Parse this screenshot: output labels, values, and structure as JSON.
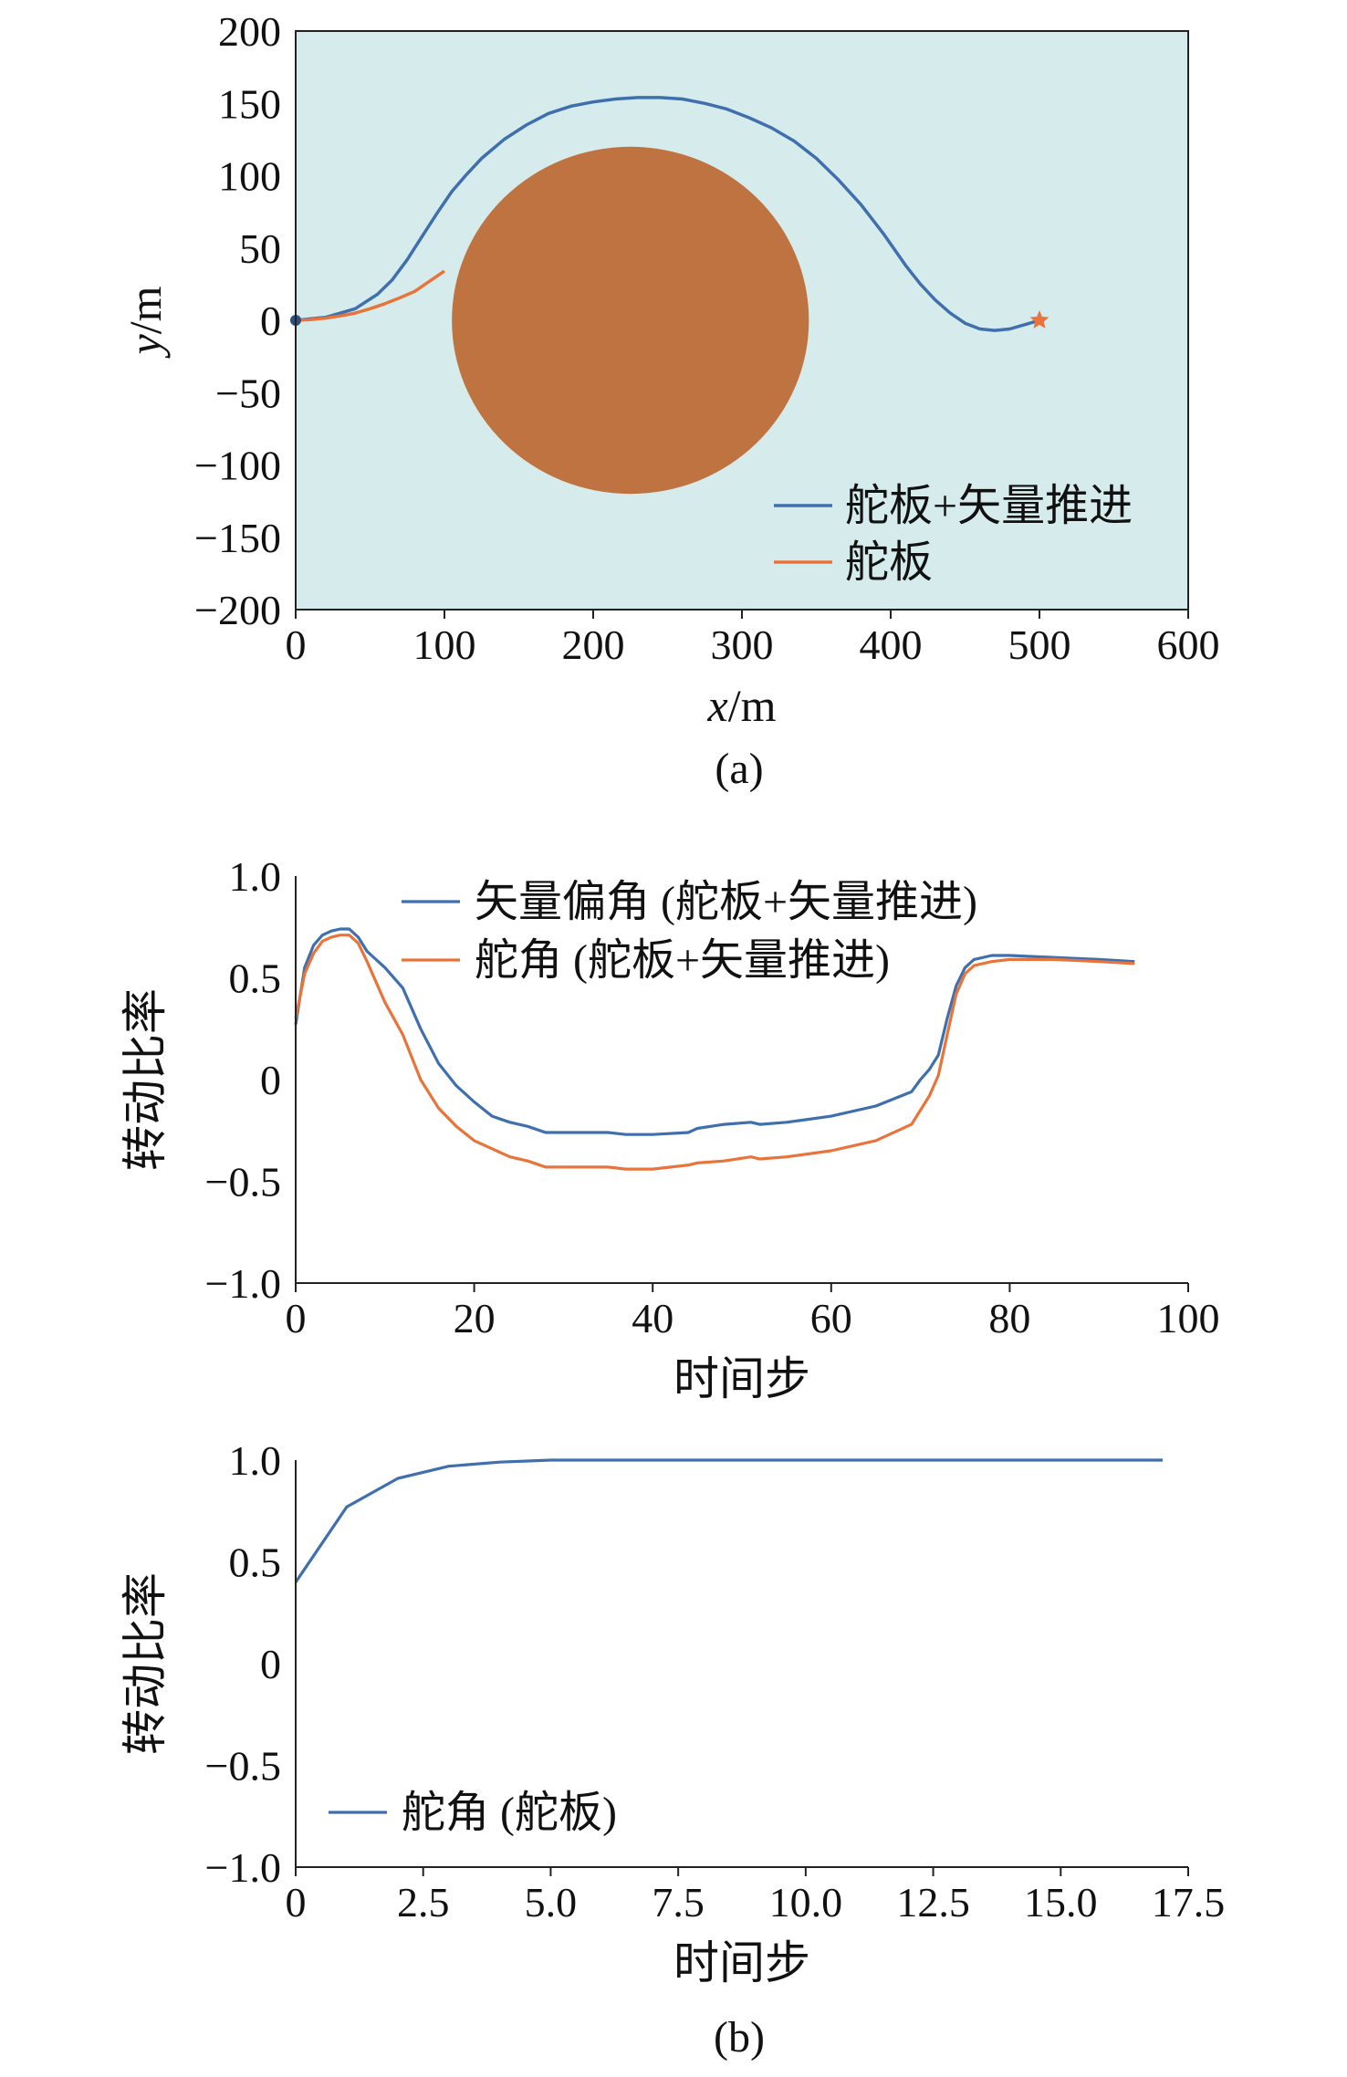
{
  "colors": {
    "blue": "#3f6fad",
    "orange": "#e8743b",
    "bg": "#d6ecec",
    "obstacle": "#bf7340"
  },
  "captions": {
    "a": "(a)",
    "b": "(b)"
  },
  "chart_data": [
    {
      "type": "line",
      "id": "trajectory",
      "xlabel": "x/m",
      "ylabel": "y/m",
      "xlim": [
        0,
        600
      ],
      "ylim": [
        -200,
        200
      ],
      "xticks": [
        0,
        100,
        200,
        300,
        400,
        500,
        600
      ],
      "yticks": [
        200,
        150,
        100,
        50,
        0,
        -50,
        -100,
        -150,
        -200
      ],
      "obstacle": {
        "type": "circle",
        "cx": 225,
        "cy": 0,
        "rx": 120,
        "ry": 120
      },
      "start": [
        0,
        0
      ],
      "goal": [
        500,
        0
      ],
      "series": [
        {
          "name": "舵板+矢量推进",
          "color": "#3f6fad",
          "x": [
            0,
            20,
            40,
            55,
            65,
            75,
            85,
            95,
            105,
            115,
            125,
            140,
            155,
            170,
            185,
            200,
            215,
            230,
            245,
            260,
            275,
            290,
            305,
            320,
            335,
            350,
            365,
            380,
            395,
            410,
            420,
            430,
            440,
            450,
            460,
            470,
            480,
            490,
            500
          ],
          "y": [
            0,
            2,
            8,
            18,
            28,
            42,
            58,
            74,
            89,
            101,
            112,
            125,
            135,
            143,
            148,
            151,
            153,
            154,
            154,
            153,
            150,
            146,
            140,
            133,
            124,
            112,
            97,
            80,
            60,
            38,
            25,
            14,
            5,
            -2,
            -6,
            -7,
            -6,
            -3,
            0
          ]
        },
        {
          "name": "舵板",
          "color": "#e8743b",
          "x": [
            0,
            10,
            20,
            30,
            40,
            50,
            60,
            70,
            80,
            90,
            100
          ],
          "y": [
            0,
            0.5,
            1.5,
            3,
            5,
            8,
            11.5,
            15.5,
            20,
            27,
            34
          ]
        }
      ]
    },
    {
      "type": "line",
      "id": "ratio-100",
      "xlabel": "时间步",
      "ylabel": "转动比率",
      "xlim": [
        0,
        100
      ],
      "ylim": [
        -1.0,
        1.0
      ],
      "xticks": [
        0,
        20,
        40,
        60,
        80,
        100
      ],
      "yticks": [
        "1.0",
        "0.5",
        "0",
        "-0.5",
        "-1.0"
      ],
      "series": [
        {
          "name": "矢量偏角 (舵板+矢量推进)",
          "color": "#3f6fad",
          "x": [
            0,
            1,
            2,
            3,
            4,
            5,
            6,
            7,
            8,
            10,
            12,
            14,
            16,
            18,
            20,
            22,
            24,
            26,
            28,
            30,
            35,
            37,
            40,
            44,
            45,
            48,
            51,
            52,
            55,
            60,
            65,
            69,
            70,
            71,
            72,
            73,
            74,
            75,
            76,
            78,
            80,
            85,
            90,
            94
          ],
          "y": [
            0.27,
            0.55,
            0.66,
            0.71,
            0.73,
            0.74,
            0.74,
            0.7,
            0.63,
            0.55,
            0.45,
            0.25,
            0.08,
            -0.03,
            -0.11,
            -0.18,
            -0.21,
            -0.23,
            -0.26,
            -0.26,
            -0.26,
            -0.27,
            -0.27,
            -0.26,
            -0.24,
            -0.22,
            -0.21,
            -0.22,
            -0.21,
            -0.18,
            -0.13,
            -0.06,
            0.0,
            0.05,
            0.12,
            0.3,
            0.46,
            0.55,
            0.59,
            0.61,
            0.61,
            0.6,
            0.59,
            0.58
          ]
        },
        {
          "name": "舵角 (舵板+矢量推进)",
          "color": "#e8743b",
          "x": [
            0,
            1,
            2,
            3,
            4,
            5,
            6,
            7,
            8,
            10,
            12,
            14,
            16,
            18,
            20,
            22,
            24,
            26,
            28,
            30,
            35,
            37,
            40,
            44,
            45,
            48,
            51,
            52,
            55,
            60,
            65,
            69,
            70,
            71,
            72,
            73,
            74,
            75,
            76,
            78,
            80,
            85,
            90,
            94
          ],
          "y": [
            0.3,
            0.52,
            0.62,
            0.68,
            0.7,
            0.71,
            0.71,
            0.67,
            0.58,
            0.38,
            0.22,
            0.0,
            -0.14,
            -0.23,
            -0.3,
            -0.34,
            -0.38,
            -0.4,
            -0.43,
            -0.43,
            -0.43,
            -0.44,
            -0.44,
            -0.42,
            -0.41,
            -0.4,
            -0.38,
            -0.39,
            -0.38,
            -0.35,
            -0.3,
            -0.22,
            -0.15,
            -0.08,
            0.02,
            0.22,
            0.42,
            0.52,
            0.56,
            0.58,
            0.59,
            0.59,
            0.58,
            0.57
          ]
        }
      ]
    },
    {
      "type": "line",
      "id": "ratio-17",
      "xlabel": "时间步",
      "ylabel": "转动比率",
      "xlim": [
        0,
        17.5
      ],
      "ylim": [
        -1.0,
        1.0
      ],
      "xticks": [
        "0",
        "2.5",
        "5.0",
        "7.5",
        "10.0",
        "12.5",
        "15.0",
        "17.5"
      ],
      "yticks": [
        "1.0",
        "0.5",
        "0",
        "-0.5",
        "-1.0"
      ],
      "series": [
        {
          "name": "舵角 (舵板)",
          "color": "#3f6fad",
          "x": [
            0,
            1,
            2,
            3,
            4,
            5,
            6,
            7,
            8,
            9,
            10,
            11,
            12,
            13,
            14,
            15,
            16,
            17
          ],
          "y": [
            0.4,
            0.77,
            0.91,
            0.97,
            0.99,
            1.0,
            1.0,
            1.0,
            1.0,
            1.0,
            1.0,
            1.0,
            1.0,
            1.0,
            1.0,
            1.0,
            1.0,
            1.0
          ]
        }
      ]
    }
  ]
}
